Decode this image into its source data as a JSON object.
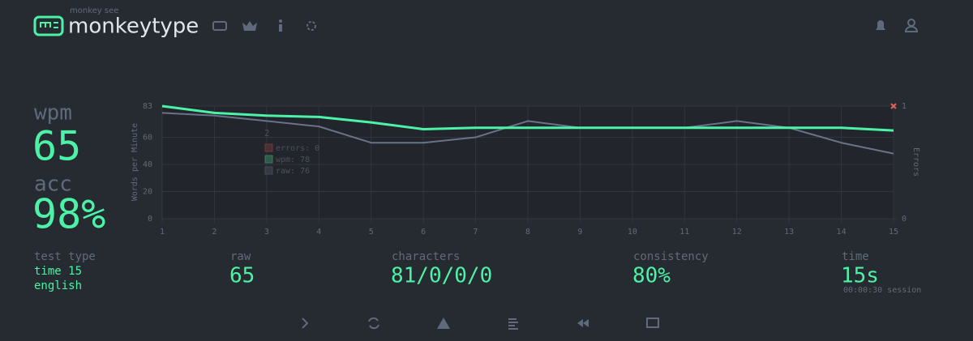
{
  "header": {
    "tagline": "monkey see",
    "brand": "monkeytype"
  },
  "result": {
    "wpm_label": "wpm",
    "wpm": "65",
    "acc_label": "acc",
    "acc": "98%",
    "test_type_label": "test type",
    "test_type": "time 15",
    "language": "english",
    "raw_label": "raw",
    "raw": "65",
    "characters_label": "characters",
    "characters": "81/0/0/0",
    "consistency_label": "consistency",
    "consistency": "80%",
    "time_label": "time",
    "time": "15s",
    "session": "00:00:30 session"
  },
  "chart_data": {
    "type": "line",
    "x": [
      1,
      2,
      3,
      4,
      5,
      6,
      7,
      8,
      9,
      10,
      11,
      12,
      13,
      14,
      15
    ],
    "xlim": [
      1,
      15
    ],
    "xticks": [
      1,
      2,
      3,
      4,
      5,
      6,
      7,
      8,
      9,
      10,
      11,
      12,
      13,
      14,
      15
    ],
    "y_label": "Words per Minute",
    "ylim": [
      0,
      83
    ],
    "yticks": [
      0,
      20,
      40,
      60,
      83
    ],
    "y2_label": "Errors",
    "y2lim": [
      0,
      1
    ],
    "y2ticks": [
      0,
      1
    ],
    "grid": true,
    "series": [
      {
        "name": "wpm",
        "color": "#4cf3a6",
        "values": [
          83,
          78,
          76,
          75,
          71,
          66,
          67,
          67,
          67,
          67,
          67,
          67,
          67,
          67,
          65
        ]
      },
      {
        "name": "raw",
        "color": "#687389",
        "values": [
          78,
          76,
          72,
          68,
          56,
          56,
          60,
          72,
          67,
          67,
          67,
          72,
          67,
          56,
          48
        ]
      },
      {
        "name": "errors",
        "color": "#e0605a",
        "axis": "y2",
        "values": [
          null,
          null,
          null,
          null,
          null,
          null,
          null,
          null,
          null,
          null,
          null,
          null,
          null,
          null,
          1
        ]
      }
    ],
    "tooltip": {
      "title": "2",
      "entries": [
        "errors: 0",
        "wpm: 78",
        "raw: 76"
      ]
    }
  }
}
